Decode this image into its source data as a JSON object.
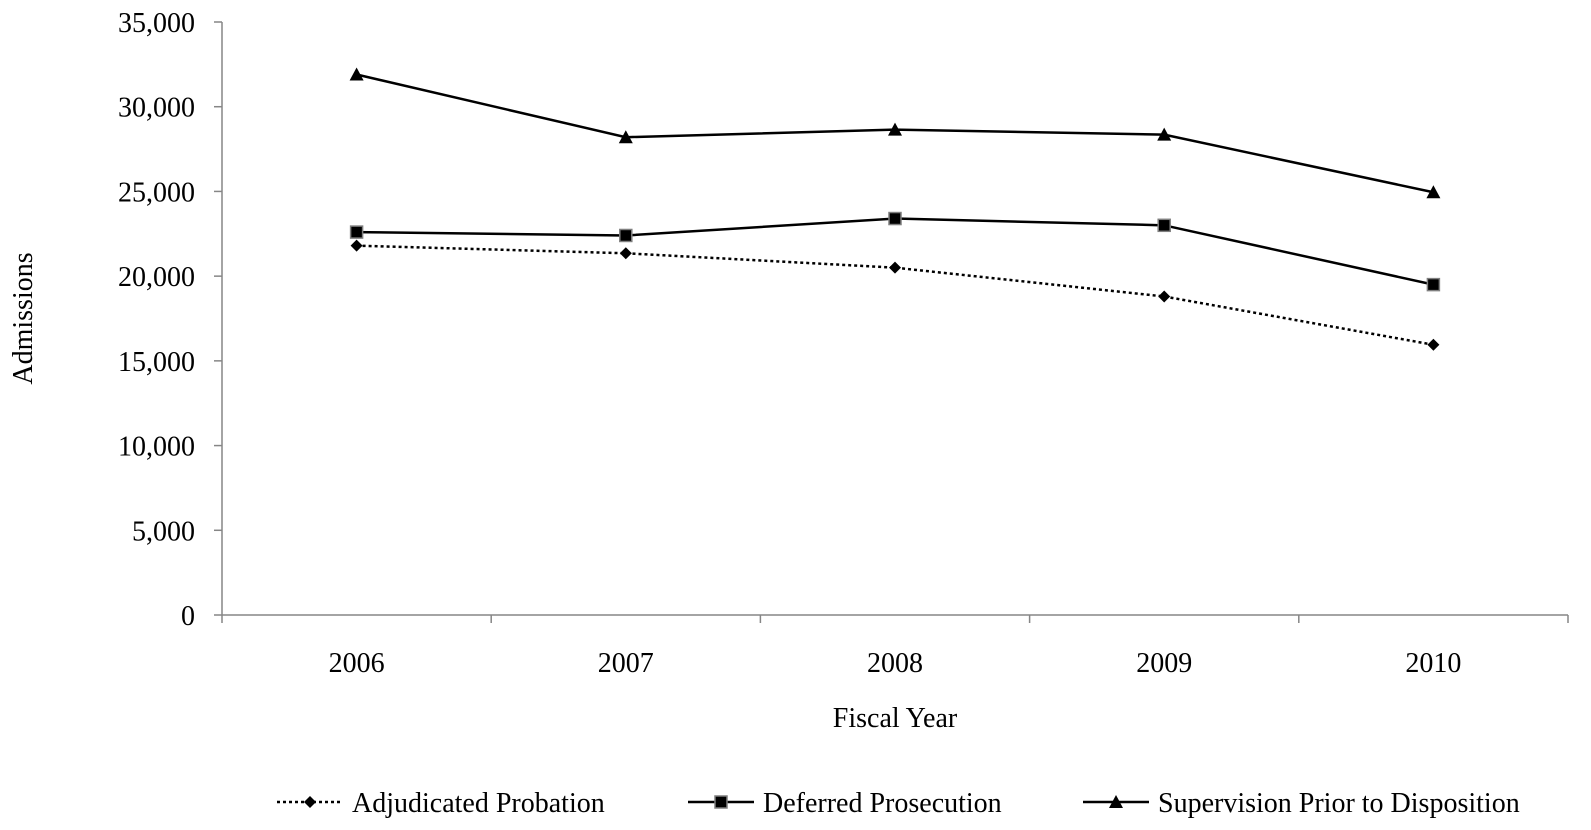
{
  "chart_data": {
    "type": "line",
    "title": "",
    "xlabel": "Fiscal Year",
    "ylabel": "Admissions",
    "categories": [
      "2006",
      "2007",
      "2008",
      "2009",
      "2010"
    ],
    "ylim": [
      0,
      35000
    ],
    "yticks": [
      0,
      5000,
      10000,
      15000,
      20000,
      25000,
      30000,
      35000
    ],
    "ytick_labels": [
      "0",
      "5,000",
      "10,000",
      "15,000",
      "20,000",
      "25,000",
      "30,000",
      "35,000"
    ],
    "grid": false,
    "legend_position": "bottom",
    "series": [
      {
        "name": "Adjudicated Probation",
        "values": [
          21800,
          21350,
          20500,
          18800,
          15950
        ],
        "marker": "diamond",
        "line_style": "dotted"
      },
      {
        "name": "Deferred Prosecution",
        "values": [
          22600,
          22400,
          23400,
          23000,
          19500
        ],
        "marker": "square",
        "line_style": "solid"
      },
      {
        "name": "Supervision Prior to Disposition",
        "values": [
          31900,
          28200,
          28650,
          28350,
          24950
        ],
        "marker": "triangle",
        "line_style": "solid"
      }
    ]
  }
}
